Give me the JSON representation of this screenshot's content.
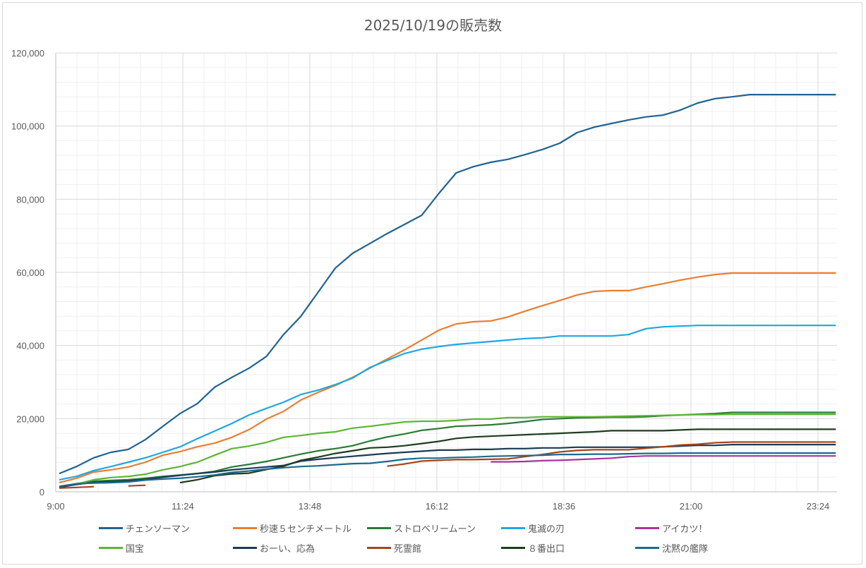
{
  "chart_data": {
    "type": "line",
    "title": "2025/10/19の販売数",
    "xlabel": "",
    "ylabel": "",
    "ylim": [
      0,
      120000
    ],
    "y_ticks": [
      "0",
      "20,000",
      "40,000",
      "60,000",
      "80,000",
      "100,000",
      "120,000"
    ],
    "x_ticks": [
      "9:00",
      "11:24",
      "13:48",
      "16:12",
      "18:36",
      "21:00",
      "23:24"
    ],
    "x_start_minutes": 544,
    "x_interval_minutes": 19.56,
    "grid": true,
    "legend_position": "bottom",
    "series": [
      {
        "name": "チェンソーマン",
        "color": "#1f6391",
        "values": [
          5000,
          6900,
          9300,
          10800,
          11600,
          14300,
          17900,
          21400,
          24100,
          28600,
          31300,
          33800,
          37000,
          43000,
          48000,
          54600,
          61200,
          65200,
          67900,
          70600,
          73100,
          75600,
          81600,
          87200,
          88900,
          90100,
          90900,
          92200,
          93600,
          95300,
          98200,
          99700,
          100700,
          101700,
          102500,
          103000,
          104400,
          106300,
          107500,
          108000,
          108600,
          108600,
          108600,
          108600,
          108600,
          108600
        ]
      },
      {
        "name": "秒速５センチメートル",
        "color": "#ed7d31",
        "values": [
          2500,
          3700,
          5400,
          6000,
          6800,
          8100,
          10000,
          11000,
          12300,
          13300,
          14900,
          17000,
          19900,
          22000,
          25100,
          27200,
          29100,
          31300,
          33800,
          36300,
          38800,
          41500,
          44200,
          45900,
          46500,
          46700,
          47800,
          49400,
          50900,
          52300,
          53800,
          54800,
          55000,
          55000,
          56000,
          56900,
          57900,
          58700,
          59400,
          59800,
          59800,
          59800,
          59800,
          59800,
          59800,
          59800
        ]
      },
      {
        "name": "ストロベリームーン",
        "color": "#2a7b33",
        "values": [
          1300,
          2200,
          2900,
          3100,
          3300,
          3700,
          4200,
          4600,
          5000,
          5600,
          6800,
          7500,
          8300,
          9300,
          10300,
          11200,
          11800,
          12600,
          13900,
          15000,
          15800,
          16800,
          17300,
          17900,
          18100,
          18300,
          18700,
          19200,
          19800,
          20000,
          20200,
          20300,
          20400,
          20400,
          20500,
          20800,
          21000,
          21200,
          21400,
          21700,
          21700,
          21700,
          21700,
          21700,
          21700,
          21700
        ]
      },
      {
        "name": "鬼滅の刃",
        "color": "#1ea7e1",
        "values": [
          3300,
          4200,
          5800,
          6900,
          8100,
          9300,
          10800,
          12300,
          14500,
          16600,
          18700,
          21000,
          22800,
          24500,
          26600,
          27800,
          29300,
          31100,
          34000,
          35900,
          37800,
          39000,
          39700,
          40300,
          40700,
          41100,
          41500,
          41900,
          42100,
          42600,
          42600,
          42600,
          42600,
          43000,
          44600,
          45100,
          45300,
          45500,
          45500,
          45500,
          45500,
          45500,
          45500,
          45500,
          45500,
          45500
        ]
      },
      {
        "name": "アイカツ！",
        "color": "#a535a0",
        "values": [
          null,
          null,
          null,
          null,
          null,
          null,
          null,
          null,
          null,
          null,
          null,
          null,
          null,
          null,
          null,
          null,
          null,
          null,
          null,
          null,
          null,
          null,
          null,
          null,
          null,
          8200,
          8200,
          8300,
          8500,
          8600,
          8800,
          9000,
          9200,
          9600,
          9800,
          9800,
          9800,
          9800,
          9800,
          9800,
          9800,
          9800,
          9800,
          9800,
          9800,
          9800
        ]
      },
      {
        "name": "国宝",
        "color": "#5db536",
        "values": [
          1300,
          2100,
          3300,
          3900,
          4200,
          4800,
          6000,
          6900,
          8100,
          10000,
          11800,
          12500,
          13500,
          14900,
          15400,
          16000,
          16400,
          17400,
          17900,
          18500,
          19100,
          19300,
          19300,
          19500,
          19900,
          19900,
          20300,
          20300,
          20500,
          20500,
          20500,
          20500,
          20600,
          20700,
          20800,
          20900,
          21000,
          21100,
          21100,
          21200,
          21200,
          21200,
          21200,
          21200,
          21200,
          21200
        ]
      },
      {
        "name": "おーい、応為",
        "color": "#1b3a57",
        "values": [
          1200,
          2000,
          2600,
          2800,
          3000,
          3400,
          4000,
          4500,
          5000,
          5400,
          6000,
          6400,
          6800,
          7200,
          8400,
          8900,
          9300,
          9700,
          10100,
          10500,
          10800,
          11100,
          11400,
          11400,
          11600,
          11600,
          11800,
          11800,
          12000,
          12000,
          12200,
          12200,
          12200,
          12200,
          12200,
          12300,
          12500,
          12700,
          12700,
          12900,
          12900,
          12900,
          12900,
          12900,
          12900,
          12900
        ]
      },
      {
        "name": "死霊館",
        "color": "#a5461a",
        "values": [
          1000,
          1200,
          1400,
          null,
          1600,
          1800,
          null,
          null,
          null,
          null,
          null,
          null,
          null,
          null,
          null,
          null,
          null,
          null,
          null,
          7000,
          7600,
          8400,
          8600,
          8800,
          8800,
          8900,
          9000,
          9600,
          10200,
          10900,
          11300,
          11500,
          11500,
          11500,
          11900,
          12300,
          12800,
          13000,
          13400,
          13600,
          13600,
          13600,
          13600,
          13600,
          13600,
          13600
        ]
      },
      {
        "name": "８番出口",
        "color": "#1e3d1e",
        "values": [
          null,
          null,
          null,
          null,
          null,
          null,
          null,
          2500,
          3300,
          4400,
          4900,
          5100,
          6100,
          7000,
          8600,
          9500,
          10500,
          11200,
          12000,
          12200,
          12600,
          13200,
          13800,
          14600,
          15000,
          15200,
          15400,
          15600,
          15800,
          16000,
          16200,
          16400,
          16700,
          16700,
          16700,
          16700,
          16900,
          17100,
          17100,
          17100,
          17100,
          17100,
          17100,
          17100,
          17100,
          17100
        ]
      },
      {
        "name": "沈黙の艦隊",
        "color": "#1b6a8c",
        "values": [
          1500,
          2200,
          2400,
          2500,
          2700,
          3200,
          3500,
          3700,
          4100,
          4600,
          5300,
          5700,
          6200,
          6600,
          6900,
          7100,
          7400,
          7700,
          7800,
          8300,
          8900,
          9200,
          9200,
          9400,
          9500,
          9700,
          9800,
          9900,
          10000,
          10200,
          10200,
          10300,
          10300,
          10400,
          10500,
          10500,
          10600,
          10600,
          10600,
          10600,
          10600,
          10600,
          10600,
          10600,
          10600,
          10600
        ]
      }
    ]
  }
}
